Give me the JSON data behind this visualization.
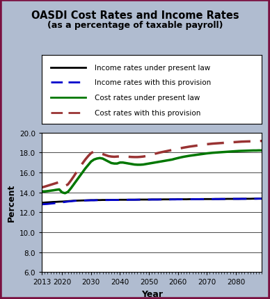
{
  "title": "OASDI Cost Rates and Income Rates",
  "subtitle": "(as a percentage of taxable payroll)",
  "xlabel": "Year",
  "ylabel": "Percent",
  "ylim": [
    6.0,
    20.0
  ],
  "yticks": [
    6.0,
    8.0,
    10.0,
    12.0,
    14.0,
    16.0,
    18.0,
    20.0
  ],
  "xlim": [
    2013,
    2089
  ],
  "xticks": [
    2013,
    2020,
    2030,
    2040,
    2050,
    2060,
    2070,
    2080
  ],
  "background_color": "#b0bcd0",
  "fig_border_color": "#7a1040",
  "plot_bg_color": "#ffffff",
  "legend_labels": [
    "Income rates under present law",
    "Income rates with this provision",
    "Cost rates under present law",
    "Cost rates with this provision"
  ],
  "income_present_law": {
    "color": "#000000",
    "linestyle": "solid",
    "linewidth": 2.0,
    "years": [
      2013,
      2014,
      2015,
      2016,
      2017,
      2018,
      2019,
      2020,
      2021,
      2022,
      2023,
      2024,
      2025,
      2026,
      2027,
      2028,
      2029,
      2030,
      2031,
      2032,
      2033,
      2034,
      2035,
      2036,
      2037,
      2038,
      2039,
      2040,
      2041,
      2042,
      2043,
      2044,
      2045,
      2046,
      2047,
      2048,
      2049,
      2050,
      2051,
      2052,
      2053,
      2054,
      2055,
      2056,
      2057,
      2058,
      2059,
      2060,
      2061,
      2062,
      2063,
      2064,
      2065,
      2066,
      2067,
      2068,
      2069,
      2070,
      2071,
      2072,
      2073,
      2074,
      2075,
      2076,
      2077,
      2078,
      2079,
      2080,
      2081,
      2082,
      2083,
      2084,
      2085,
      2086,
      2087,
      2088,
      2089
    ],
    "values": [
      12.96,
      12.98,
      13.0,
      13.02,
      13.04,
      13.05,
      13.07,
      13.08,
      13.1,
      13.12,
      13.14,
      13.16,
      13.17,
      13.18,
      13.19,
      13.2,
      13.21,
      13.22,
      13.22,
      13.23,
      13.23,
      13.24,
      13.24,
      13.24,
      13.25,
      13.25,
      13.25,
      13.26,
      13.26,
      13.26,
      13.27,
      13.27,
      13.27,
      13.27,
      13.28,
      13.28,
      13.28,
      13.28,
      13.29,
      13.29,
      13.29,
      13.29,
      13.3,
      13.3,
      13.3,
      13.3,
      13.3,
      13.31,
      13.31,
      13.31,
      13.31,
      13.32,
      13.32,
      13.32,
      13.32,
      13.33,
      13.33,
      13.33,
      13.33,
      13.33,
      13.34,
      13.34,
      13.34,
      13.34,
      13.35,
      13.35,
      13.35,
      13.35,
      13.35,
      13.36,
      13.36,
      13.36,
      13.36,
      13.37,
      13.37,
      13.37,
      13.37
    ]
  },
  "income_provision": {
    "color": "#0000cc",
    "linestyle": "dashed",
    "linewidth": 2.0,
    "years": [
      2013,
      2014,
      2015,
      2016,
      2017,
      2018,
      2019,
      2020,
      2021,
      2022,
      2023,
      2024,
      2025,
      2026,
      2027,
      2028,
      2029,
      2030,
      2031,
      2032,
      2033,
      2034,
      2035,
      2036,
      2037,
      2038,
      2039,
      2040,
      2041,
      2042,
      2043,
      2044,
      2045,
      2046,
      2047,
      2048,
      2049,
      2050,
      2051,
      2052,
      2053,
      2054,
      2055,
      2056,
      2057,
      2058,
      2059,
      2060,
      2061,
      2062,
      2063,
      2064,
      2065,
      2066,
      2067,
      2068,
      2069,
      2070,
      2071,
      2072,
      2073,
      2074,
      2075,
      2076,
      2077,
      2078,
      2079,
      2080,
      2081,
      2082,
      2083,
      2084,
      2085,
      2086,
      2087,
      2088,
      2089
    ],
    "values": [
      12.8,
      12.82,
      12.84,
      12.87,
      12.9,
      12.93,
      12.97,
      13.0,
      13.04,
      13.08,
      13.11,
      13.14,
      13.16,
      13.17,
      13.18,
      13.19,
      13.2,
      13.21,
      13.21,
      13.22,
      13.22,
      13.23,
      13.23,
      13.23,
      13.24,
      13.24,
      13.24,
      13.25,
      13.25,
      13.25,
      13.26,
      13.26,
      13.26,
      13.27,
      13.27,
      13.27,
      13.27,
      13.28,
      13.28,
      13.28,
      13.28,
      13.29,
      13.29,
      13.29,
      13.29,
      13.3,
      13.3,
      13.3,
      13.3,
      13.31,
      13.31,
      13.31,
      13.31,
      13.32,
      13.32,
      13.32,
      13.32,
      13.33,
      13.33,
      13.33,
      13.33,
      13.33,
      13.34,
      13.34,
      13.34,
      13.34,
      13.35,
      13.35,
      13.35,
      13.35,
      13.35,
      13.36,
      13.36,
      13.36,
      13.36,
      13.37,
      13.37
    ]
  },
  "cost_present_law": {
    "color": "#007700",
    "linestyle": "solid",
    "linewidth": 2.5,
    "years": [
      2013,
      2014,
      2015,
      2016,
      2017,
      2018,
      2019,
      2020,
      2021,
      2022,
      2023,
      2024,
      2025,
      2026,
      2027,
      2028,
      2029,
      2030,
      2031,
      2032,
      2033,
      2034,
      2035,
      2036,
      2037,
      2038,
      2039,
      2040,
      2041,
      2042,
      2043,
      2044,
      2045,
      2046,
      2047,
      2048,
      2049,
      2050,
      2051,
      2052,
      2053,
      2054,
      2055,
      2056,
      2057,
      2058,
      2059,
      2060,
      2061,
      2062,
      2063,
      2064,
      2065,
      2066,
      2067,
      2068,
      2069,
      2070,
      2071,
      2072,
      2073,
      2074,
      2075,
      2076,
      2077,
      2078,
      2079,
      2080,
      2081,
      2082,
      2083,
      2084,
      2085,
      2086,
      2087,
      2088,
      2089
    ],
    "values": [
      14.1,
      14.1,
      14.13,
      14.17,
      14.21,
      14.26,
      14.3,
      14.0,
      13.92,
      14.05,
      14.4,
      14.8,
      15.2,
      15.6,
      16.0,
      16.4,
      16.75,
      17.1,
      17.3,
      17.4,
      17.45,
      17.4,
      17.25,
      17.1,
      16.95,
      16.9,
      16.9,
      17.0,
      17.0,
      16.95,
      16.9,
      16.85,
      16.8,
      16.78,
      16.78,
      16.8,
      16.85,
      16.9,
      16.95,
      17.0,
      17.05,
      17.1,
      17.15,
      17.2,
      17.25,
      17.3,
      17.38,
      17.45,
      17.52,
      17.58,
      17.63,
      17.68,
      17.72,
      17.76,
      17.8,
      17.84,
      17.88,
      17.92,
      17.95,
      17.98,
      18.0,
      18.02,
      18.04,
      18.06,
      18.08,
      18.1,
      18.12,
      18.14,
      18.16,
      18.17,
      18.18,
      18.19,
      18.2,
      18.21,
      18.21,
      18.22,
      18.22
    ]
  },
  "cost_provision": {
    "color": "#993333",
    "linestyle": "dashed",
    "linewidth": 2.5,
    "years": [
      2013,
      2014,
      2015,
      2016,
      2017,
      2018,
      2019,
      2020,
      2021,
      2022,
      2023,
      2024,
      2025,
      2026,
      2027,
      2028,
      2029,
      2030,
      2031,
      2032,
      2033,
      2034,
      2035,
      2036,
      2037,
      2038,
      2039,
      2040,
      2041,
      2042,
      2043,
      2044,
      2045,
      2046,
      2047,
      2048,
      2049,
      2050,
      2051,
      2052,
      2053,
      2054,
      2055,
      2056,
      2057,
      2058,
      2059,
      2060,
      2061,
      2062,
      2063,
      2064,
      2065,
      2066,
      2067,
      2068,
      2069,
      2070,
      2071,
      2072,
      2073,
      2074,
      2075,
      2076,
      2077,
      2078,
      2079,
      2080,
      2081,
      2082,
      2083,
      2084,
      2085,
      2086,
      2087,
      2088,
      2089
    ],
    "values": [
      14.5,
      14.58,
      14.67,
      14.76,
      14.85,
      14.94,
      15.04,
      14.75,
      14.65,
      14.8,
      15.18,
      15.6,
      16.05,
      16.48,
      16.9,
      17.3,
      17.65,
      17.95,
      18.1,
      18.05,
      17.95,
      17.85,
      17.75,
      17.65,
      17.6,
      17.58,
      17.6,
      17.62,
      17.62,
      17.6,
      17.58,
      17.56,
      17.55,
      17.55,
      17.57,
      17.6,
      17.65,
      17.72,
      17.8,
      17.88,
      17.95,
      18.02,
      18.08,
      18.14,
      18.2,
      18.26,
      18.32,
      18.38,
      18.44,
      18.5,
      18.55,
      18.6,
      18.64,
      18.68,
      18.72,
      18.76,
      18.8,
      18.84,
      18.87,
      18.9,
      18.92,
      18.94,
      18.96,
      18.98,
      19.0,
      19.02,
      19.04,
      19.06,
      19.08,
      19.1,
      19.11,
      19.12,
      19.13,
      19.14,
      19.15,
      19.16,
      19.17
    ]
  }
}
